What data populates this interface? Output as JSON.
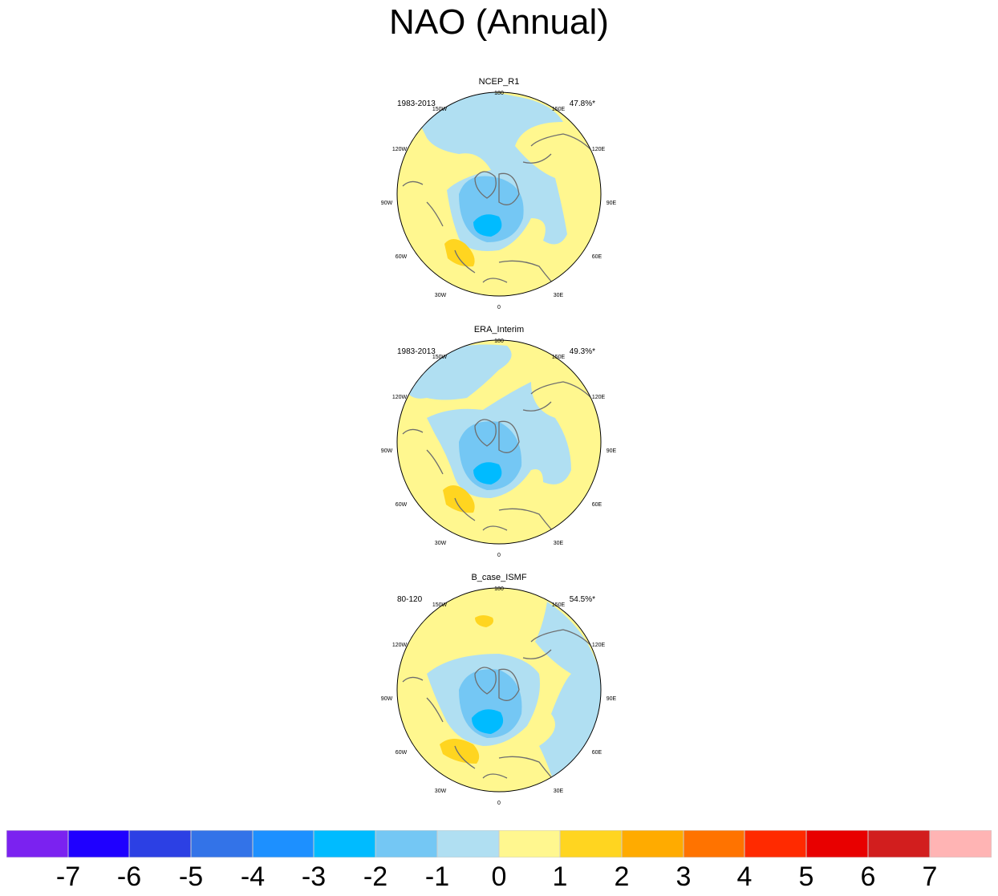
{
  "title": "NAO (Annual)",
  "colors": {
    "c0": "#7b22f0",
    "c1": "#1f00ff",
    "c2": "#2c40e4",
    "c3": "#3373e8",
    "c4": "#1d90ff",
    "c5": "#00bbff",
    "c6": "#74c7f4",
    "c7": "#b0dff2",
    "c8": "#fff78f",
    "c9": "#ffd520",
    "c10": "#ffab00",
    "c11": "#ff7300",
    "c12": "#ff2a00",
    "c13": "#e80000",
    "c14": "#d21e1e",
    "c15": "#ffb4b4",
    "coast": "#6e6e6e"
  },
  "colorbar": {
    "ticks": [
      "-7",
      "-6",
      "-5",
      "-4",
      "-3",
      "-2",
      "-1",
      "0",
      "1",
      "2",
      "3",
      "4",
      "5",
      "6",
      "7"
    ]
  },
  "longitude_labels": {
    "top": "180",
    "bottom": "0",
    "left": "90W",
    "right": "90E",
    "upper_left_1": "150W",
    "upper_left_2": "120W",
    "upper_right_1": "150E",
    "upper_right_2": "120E",
    "lower_left_1": "60W",
    "lower_left_2": "30W",
    "lower_right_1": "60E",
    "lower_right_2": "30E"
  },
  "panels": [
    {
      "name": "NCEP_R1",
      "period": "1983-2013",
      "variance": "47.8%*"
    },
    {
      "name": "ERA_Interim",
      "period": "1983-2013",
      "variance": "49.3%*"
    },
    {
      "name": "B_case_ISMF",
      "period": "80-120",
      "variance": "54.5%*"
    }
  ]
}
